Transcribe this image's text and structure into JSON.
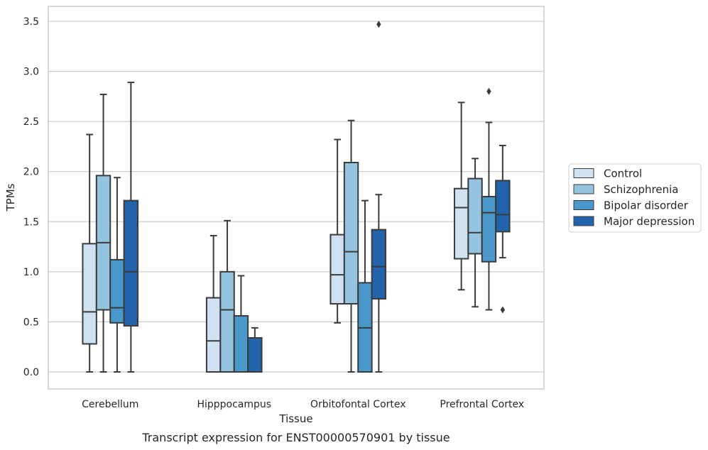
{
  "caption": "Transcript expression for ENST00000570901 by tissue",
  "chart_data": {
    "type": "box",
    "xlabel": "Tissue",
    "ylabel": "TPMs",
    "ylim": [
      -0.17,
      3.65
    ],
    "yticks": [
      0.0,
      0.5,
      1.0,
      1.5,
      2.0,
      2.5,
      3.0,
      3.5
    ],
    "ytick_labels": [
      "0.0",
      "0.5",
      "1.0",
      "1.5",
      "2.0",
      "2.5",
      "3.0",
      "3.5"
    ],
    "grid": "horizontal",
    "legend_position": "right",
    "categories": [
      "Cerebellum",
      "Hipppocampus",
      "Orbitofontal Cortex",
      "Prefrontal Cortex"
    ],
    "series": [
      {
        "name": "Control",
        "color": "#d0e1f2",
        "boxes": [
          {
            "whislo": 0.0,
            "q1": 0.28,
            "med": 0.6,
            "q3": 1.28,
            "whishi": 2.37,
            "fliers": []
          },
          {
            "whislo": 0.0,
            "q1": 0.0,
            "med": 0.31,
            "q3": 0.74,
            "whishi": 1.36,
            "fliers": []
          },
          {
            "whislo": 0.49,
            "q1": 0.68,
            "med": 0.97,
            "q3": 1.37,
            "whishi": 2.32,
            "fliers": []
          },
          {
            "whislo": 0.82,
            "q1": 1.13,
            "med": 1.64,
            "q3": 1.83,
            "whishi": 2.69,
            "fliers": []
          }
        ]
      },
      {
        "name": "Schizophrenia",
        "color": "#94c4df",
        "boxes": [
          {
            "whislo": 0.0,
            "q1": 0.62,
            "med": 1.29,
            "q3": 1.96,
            "whishi": 2.77,
            "fliers": []
          },
          {
            "whislo": 0.0,
            "q1": 0.0,
            "med": 0.62,
            "q3": 1.0,
            "whishi": 1.51,
            "fliers": []
          },
          {
            "whislo": 0.0,
            "q1": 0.68,
            "med": 1.2,
            "q3": 2.09,
            "whishi": 2.51,
            "fliers": []
          },
          {
            "whislo": 0.65,
            "q1": 1.18,
            "med": 1.39,
            "q3": 1.93,
            "whishi": 2.13,
            "fliers": []
          }
        ]
      },
      {
        "name": "Bipolar disorder",
        "color": "#4a98c9",
        "boxes": [
          {
            "whislo": 0.0,
            "q1": 0.49,
            "med": 0.64,
            "q3": 1.12,
            "whishi": 1.94,
            "fliers": []
          },
          {
            "whislo": 0.0,
            "q1": 0.0,
            "med": 0.0,
            "q3": 0.56,
            "whishi": 0.96,
            "fliers": []
          },
          {
            "whislo": 0.0,
            "q1": 0.0,
            "med": 0.44,
            "q3": 0.89,
            "whishi": 1.71,
            "fliers": []
          },
          {
            "whislo": 0.62,
            "q1": 1.1,
            "med": 1.59,
            "q3": 1.75,
            "whishi": 2.49,
            "fliers": [
              2.8
            ]
          }
        ]
      },
      {
        "name": "Major depression",
        "color": "#2164ab",
        "boxes": [
          {
            "whislo": 0.0,
            "q1": 0.46,
            "med": 1.0,
            "q3": 1.71,
            "whishi": 2.89,
            "fliers": []
          },
          {
            "whislo": 0.0,
            "q1": 0.0,
            "med": 0.0,
            "q3": 0.34,
            "whishi": 0.44,
            "fliers": []
          },
          {
            "whislo": 0.0,
            "q1": 0.73,
            "med": 1.05,
            "q3": 1.42,
            "whishi": 1.77,
            "fliers": [
              3.47
            ]
          },
          {
            "whislo": 1.14,
            "q1": 1.4,
            "med": 1.57,
            "q3": 1.91,
            "whishi": 2.26,
            "fliers": [
              0.62
            ]
          }
        ]
      }
    ]
  }
}
